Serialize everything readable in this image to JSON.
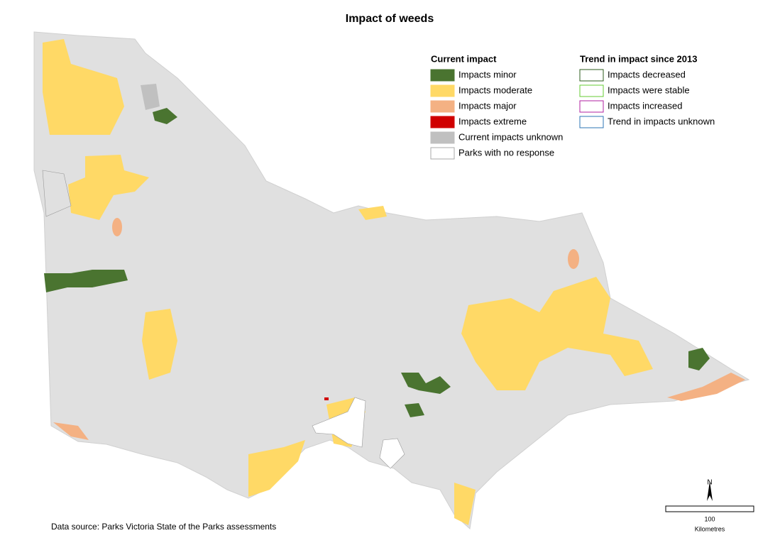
{
  "title": "Impact of weeds",
  "legend": {
    "current": {
      "heading": "Current impact",
      "items": [
        {
          "label": "Impacts minor",
          "color": "#4a7430"
        },
        {
          "label": "Impacts moderate",
          "color": "#ffd966"
        },
        {
          "label": "Impacts major",
          "color": "#f4b183"
        },
        {
          "label": "Impacts extreme",
          "color": "#d00000"
        },
        {
          "label": "Current impacts unknown",
          "color": "#c0c0c0"
        },
        {
          "label": "Parks with no response",
          "color": "#ffffff"
        }
      ]
    },
    "trend": {
      "heading": "Trend in impact since 2013",
      "items": [
        {
          "label": "Impacts decreased",
          "color": "#2e5c1e"
        },
        {
          "label": "Impacts were stable",
          "color": "#66cc33"
        },
        {
          "label": "Impacts increased",
          "color": "#b020a0"
        },
        {
          "label": "Trend in impacts unknown",
          "color": "#2e75b6"
        }
      ]
    }
  },
  "source": "Data source: Parks Victoria State of the Parks assessments",
  "scale": {
    "north": "N",
    "distance": "100",
    "unit": "Kilometres"
  }
}
